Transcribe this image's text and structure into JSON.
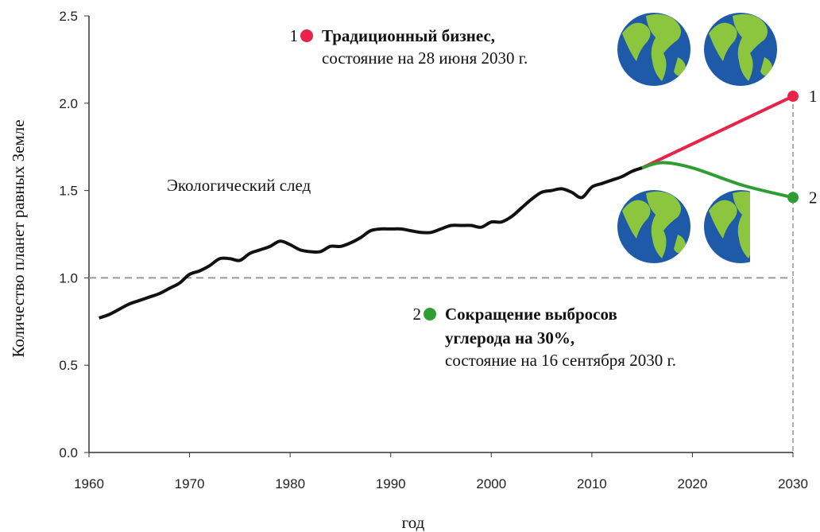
{
  "chart_data": {
    "type": "line",
    "xlabel": "год",
    "ylabel": "Количество планет равных Земле",
    "xlim": [
      1960,
      2030
    ],
    "ylim": [
      0,
      2.5
    ],
    "xticks": [
      1960,
      1970,
      1980,
      1990,
      2000,
      2010,
      2020,
      2030
    ],
    "yticks": [
      {
        "value": 0,
        "label": "0.0"
      },
      {
        "value": 0.5,
        "label": "0.5"
      },
      {
        "value": 1,
        "label": "1.0"
      },
      {
        "value": 1.5,
        "label": "1.5"
      },
      {
        "value": 2,
        "label": "2.0"
      },
      {
        "value": 2.5,
        "label": "2.5"
      }
    ],
    "reference_line": 1,
    "series": [
      {
        "label": "Экологический след",
        "color": "#111111",
        "x": [
          1961,
          1962,
          1963,
          1964,
          1965,
          1966,
          1967,
          1968,
          1969,
          1970,
          1971,
          1972,
          1973,
          1974,
          1975,
          1976,
          1977,
          1978,
          1979,
          1980,
          1981,
          1982,
          1983,
          1984,
          1985,
          1986,
          1987,
          1988,
          1989,
          1990,
          1991,
          1992,
          1993,
          1994,
          1995,
          1996,
          1997,
          1998,
          1999,
          2000,
          2001,
          2002,
          2003,
          2004,
          2005,
          2006,
          2007,
          2008,
          2009,
          2010,
          2011,
          2012,
          2013,
          2014,
          2015
        ],
        "values": [
          0.77,
          0.79,
          0.82,
          0.85,
          0.87,
          0.89,
          0.91,
          0.94,
          0.97,
          1.02,
          1.04,
          1.07,
          1.11,
          1.11,
          1.1,
          1.14,
          1.16,
          1.18,
          1.21,
          1.19,
          1.16,
          1.15,
          1.15,
          1.18,
          1.18,
          1.2,
          1.23,
          1.27,
          1.28,
          1.28,
          1.28,
          1.27,
          1.26,
          1.26,
          1.28,
          1.3,
          1.3,
          1.3,
          1.29,
          1.32,
          1.32,
          1.35,
          1.4,
          1.45,
          1.49,
          1.5,
          1.51,
          1.49,
          1.46,
          1.52,
          1.54,
          1.56,
          1.58,
          1.61,
          1.63
        ]
      },
      {
        "end_label": "1",
        "color": "#e8234a",
        "x": [
          2015,
          2030
        ],
        "values": [
          1.63,
          2.04
        ]
      },
      {
        "end_label": "2",
        "color": "#2e9e33",
        "x": [
          2015,
          2017,
          2020,
          2025,
          2030
        ],
        "values": [
          1.63,
          1.66,
          1.63,
          1.53,
          1.46
        ]
      }
    ],
    "annotations": [
      {
        "number": "1",
        "lines": [
          "Традиционный бизнес,"
        ],
        "note": "состояние на 28 июня 2030 г."
      },
      {
        "number": "2",
        "lines": [
          "Сокращение выбросов",
          "углерода на 30%,"
        ],
        "note": "состояние на 16 сентября 2030 г."
      }
    ]
  }
}
